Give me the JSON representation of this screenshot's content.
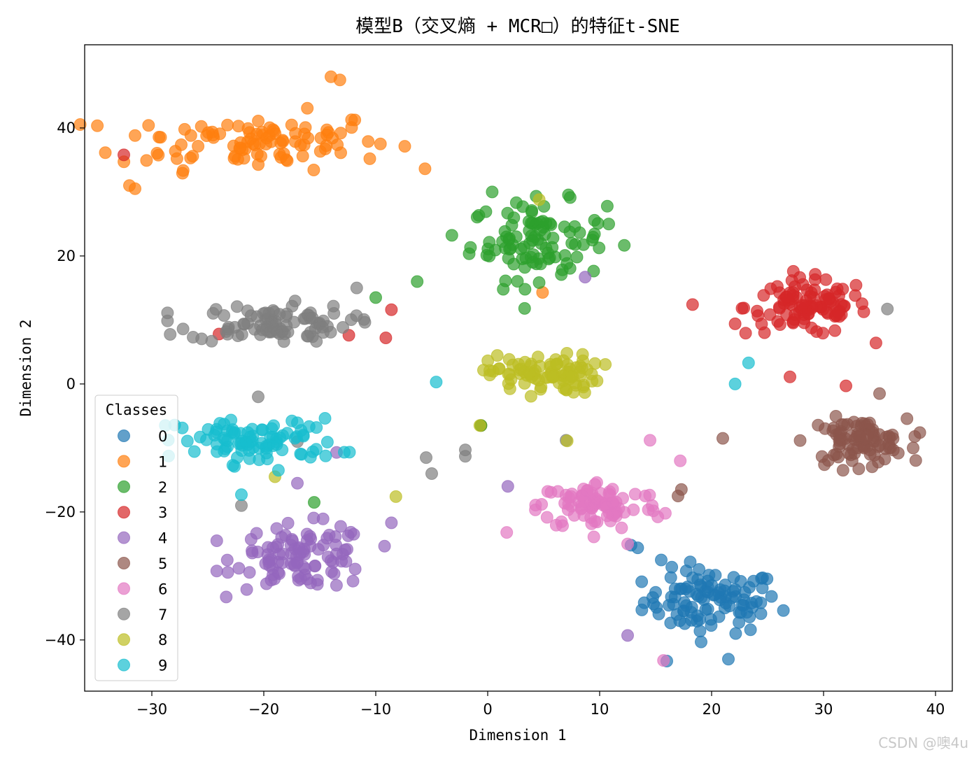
{
  "chart_data": {
    "type": "scatter",
    "title": "模型B（交叉熵 + MCR□）的特征t-SNE",
    "xlabel": "Dimension 1",
    "ylabel": "Dimension 2",
    "xlim": [
      -36,
      41.5
    ],
    "ylim": [
      -48,
      53
    ],
    "xticks": [
      -30,
      -20,
      -10,
      0,
      10,
      20,
      30,
      40
    ],
    "yticks": [
      -40,
      -20,
      0,
      20,
      40
    ],
    "xtick_labels": [
      "−30",
      "−20",
      "−10",
      "0",
      "10",
      "20",
      "30",
      "40"
    ],
    "ytick_labels": [
      "−40",
      "−20",
      "0",
      "20",
      "40"
    ],
    "grid": false,
    "legend": {
      "title": "Classes",
      "placement": "lower-left"
    },
    "series": [
      {
        "name": "0",
        "color": "#1f77b4",
        "center": [
          20,
          -34
        ],
        "spread": [
          5.5,
          4.5
        ],
        "count": 100,
        "extra": [
          [
            12.8,
            -25.2
          ],
          [
            13.4,
            -25.6
          ],
          [
            15.5,
            -27.5
          ],
          [
            16,
            -43.3
          ],
          [
            21.5,
            -43
          ],
          [
            24,
            -34
          ]
        ]
      },
      {
        "name": "1",
        "color": "#ff7f0e",
        "center": [
          -21,
          38
        ],
        "spread": [
          11,
          4
        ],
        "count": 100,
        "extra": [
          [
            -14,
            48
          ],
          [
            -13.2,
            47.5
          ],
          [
            -31.5,
            30.5
          ],
          [
            -32,
            31
          ],
          [
            4.9,
            14.3
          ],
          [
            -0.6,
            -6.5
          ]
        ]
      },
      {
        "name": "2",
        "color": "#2ca02c",
        "center": [
          4.5,
          22.5
        ],
        "spread": [
          5.5,
          5.5
        ],
        "count": 100,
        "extra": [
          [
            -6.3,
            16
          ],
          [
            -10,
            13.5
          ],
          [
            3.3,
            11.8
          ],
          [
            -0.6,
            -6.5
          ],
          [
            -15.5,
            -18.5
          ],
          [
            0.4,
            30
          ]
        ]
      },
      {
        "name": "3",
        "color": "#d62728",
        "center": [
          28.5,
          12
        ],
        "spread": [
          5,
          4
        ],
        "count": 100,
        "extra": [
          [
            -32.5,
            35.8
          ],
          [
            -8.6,
            11.6
          ],
          [
            -9.1,
            7.2
          ],
          [
            -12.4,
            7.6
          ],
          [
            -24,
            7.8
          ],
          [
            18.3,
            12.4
          ],
          [
            32,
            -0.3
          ],
          [
            27,
            1.1
          ],
          [
            22.1,
            9.4
          ]
        ]
      },
      {
        "name": "4",
        "color": "#9467bd",
        "center": [
          -16.5,
          -27
        ],
        "spread": [
          5.5,
          4.5
        ],
        "count": 100,
        "extra": [
          [
            8.7,
            16.7
          ],
          [
            1.8,
            -16
          ],
          [
            12.5,
            -39.3
          ],
          [
            -8.6,
            -21.7
          ],
          [
            -17,
            -15.5
          ],
          [
            -13.5,
            -10.7
          ]
        ]
      },
      {
        "name": "5",
        "color": "#8c564b",
        "center": [
          33,
          -9
        ],
        "spread": [
          4,
          3.2
        ],
        "count": 90,
        "extra": [
          [
            17.3,
            -16.5
          ],
          [
            17,
            -17.5
          ],
          [
            21,
            -8.5
          ],
          [
            38,
            -10
          ],
          [
            35,
            -1.5
          ]
        ]
      },
      {
        "name": "6",
        "color": "#e377c2",
        "center": [
          10,
          -19
        ],
        "spread": [
          5,
          3.5
        ],
        "count": 90,
        "extra": [
          [
            12.5,
            -25
          ],
          [
            15.7,
            -43.2
          ],
          [
            17.2,
            -12
          ],
          [
            14.5,
            -8.8
          ],
          [
            1.7,
            -23.2
          ]
        ]
      },
      {
        "name": "7",
        "color": "#7f7f7f",
        "center": [
          -19.5,
          9.5
        ],
        "spread": [
          6.5,
          2.7
        ],
        "count": 90,
        "extra": [
          [
            -5.5,
            -11.5
          ],
          [
            -5,
            -14
          ],
          [
            -2,
            -10.3
          ],
          [
            -2,
            -11.3
          ],
          [
            -20.5,
            -2
          ],
          [
            -22,
            -19
          ],
          [
            -11.7,
            15
          ],
          [
            35.7,
            11.7
          ],
          [
            7,
            -8.8
          ],
          [
            -17,
            -9
          ]
        ]
      },
      {
        "name": "8",
        "color": "#bcbd22",
        "center": [
          5,
          1.5
        ],
        "spread": [
          4.5,
          2.8
        ],
        "count": 90,
        "extra": [
          [
            4.6,
            28.8
          ],
          [
            -8.2,
            -17.6
          ],
          [
            -19,
            -14.5
          ],
          [
            7.1,
            -8.9
          ],
          [
            -0.7,
            -6.5
          ]
        ]
      },
      {
        "name": "9",
        "color": "#17becf",
        "center": [
          -20.5,
          -9
        ],
        "spread": [
          6.5,
          3.2
        ],
        "count": 90,
        "extra": [
          [
            -4.6,
            0.3
          ],
          [
            22.1,
            0
          ],
          [
            23.3,
            3.3
          ],
          [
            -28.8,
            -6.5
          ],
          [
            -15.3,
            -6.8
          ],
          [
            -22,
            -17.3
          ]
        ]
      }
    ]
  },
  "watermark": "CSDN @噢4u"
}
